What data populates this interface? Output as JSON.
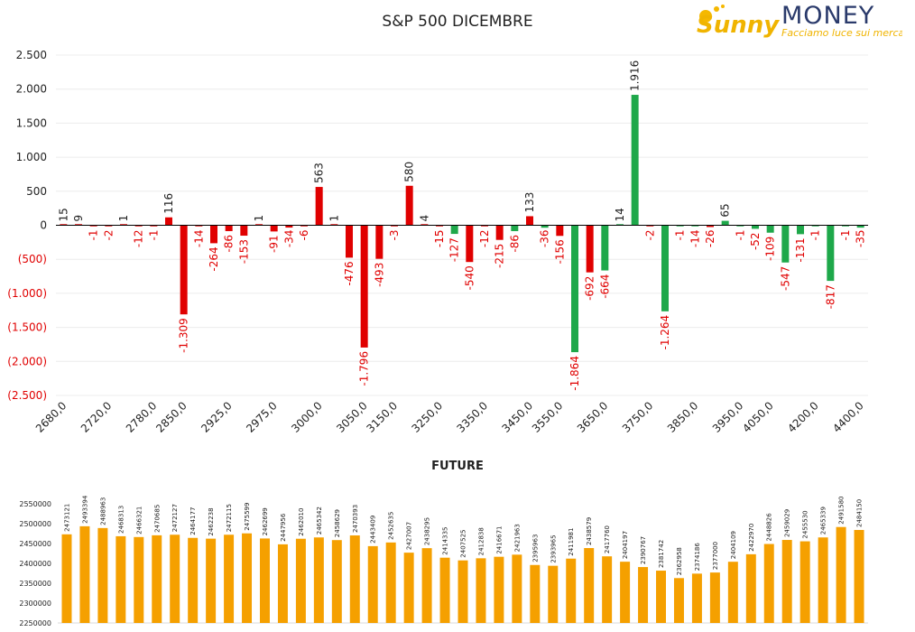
{
  "brand": {
    "sunny": "Sunny",
    "money": "MONEY",
    "tagline": "Facciamo luce sui mercati",
    "colors": {
      "sunny": "#f0b400",
      "money": "#2a3a6b",
      "tagline": "#f0b400"
    }
  },
  "chart_data": [
    {
      "type": "bar",
      "title": "S&P 500 DICEMBRE",
      "ylim": [
        -2500,
        2500
      ],
      "yticks": [
        2500,
        2000,
        1500,
        1000,
        500,
        0,
        -500,
        -1000,
        -1500,
        -2000,
        -2500
      ],
      "ytick_labels": [
        "2.500",
        "2.000",
        "1.500",
        "1.000",
        "500",
        "0",
        "(500)",
        "(1.000)",
        "(1.500)",
        "(2.000)",
        "(2.500)"
      ],
      "xtick_labels": [
        "2680,0",
        "2720,0",
        "2780,0",
        "2850,0",
        "2925,0",
        "2975,0",
        "3000,0",
        "3050,0",
        "3150,0",
        "3250,0",
        "3350,0",
        "3450,0",
        "3550,0",
        "3650,0",
        "3750,0",
        "3850,0",
        "3950,0",
        "4050,0",
        "4200,0",
        "4400,0"
      ],
      "colors": {
        "negative_text": "#e00000",
        "positive_text": "#222222"
      },
      "bars": [
        {
          "label": "15",
          "value": 15,
          "color": "#e00000"
        },
        {
          "label": "9",
          "value": 9,
          "color": "#e00000"
        },
        {
          "label": "-1",
          "value": -1,
          "color": "#e00000"
        },
        {
          "label": "-2",
          "value": -2,
          "color": "#e00000"
        },
        {
          "label": "1",
          "value": 1,
          "color": "#e00000"
        },
        {
          "label": "-12",
          "value": -12,
          "color": "#e00000"
        },
        {
          "label": "-1",
          "value": -1,
          "color": "#e00000"
        },
        {
          "label": "116",
          "value": 116,
          "color": "#e00000"
        },
        {
          "label": "-1.309",
          "value": -1309,
          "color": "#e00000"
        },
        {
          "label": "-14",
          "value": -14,
          "color": "#e00000"
        },
        {
          "label": "-264",
          "value": -264,
          "color": "#e00000"
        },
        {
          "label": "-86",
          "value": -86,
          "color": "#e00000"
        },
        {
          "label": "-153",
          "value": -153,
          "color": "#e00000"
        },
        {
          "label": "1",
          "value": 1,
          "color": "#e00000"
        },
        {
          "label": "-91",
          "value": -91,
          "color": "#e00000"
        },
        {
          "label": "-34",
          "value": -34,
          "color": "#e00000"
        },
        {
          "label": "-6",
          "value": -6,
          "color": "#e00000"
        },
        {
          "label": "563",
          "value": 563,
          "color": "#e00000"
        },
        {
          "label": "1",
          "value": 1,
          "color": "#e00000"
        },
        {
          "label": "-476",
          "value": -476,
          "color": "#e00000"
        },
        {
          "label": "-1.796",
          "value": -1796,
          "color": "#e00000"
        },
        {
          "label": "-493",
          "value": -493,
          "color": "#e00000"
        },
        {
          "label": "-3",
          "value": -3,
          "color": "#e00000"
        },
        {
          "label": "580",
          "value": 580,
          "color": "#e00000"
        },
        {
          "label": "4",
          "value": 4,
          "color": "#e00000"
        },
        {
          "label": "-15",
          "value": -15,
          "color": "#e00000"
        },
        {
          "label": "-127",
          "value": -127,
          "color": "#1ea84a"
        },
        {
          "label": "-540",
          "value": -540,
          "color": "#e00000"
        },
        {
          "label": "-12",
          "value": -12,
          "color": "#e00000"
        },
        {
          "label": "-215",
          "value": -215,
          "color": "#e00000"
        },
        {
          "label": "-86",
          "value": -86,
          "color": "#1ea84a"
        },
        {
          "label": "133",
          "value": 133,
          "color": "#e00000"
        },
        {
          "label": "-36",
          "value": -36,
          "color": "#1ea84a"
        },
        {
          "label": "-156",
          "value": -156,
          "color": "#e00000"
        },
        {
          "label": "-1.864",
          "value": -1864,
          "color": "#1ea84a"
        },
        {
          "label": "-692",
          "value": -692,
          "color": "#e00000"
        },
        {
          "label": "-664",
          "value": -664,
          "color": "#1ea84a"
        },
        {
          "label": "14",
          "value": 14,
          "color": "#1ea84a"
        },
        {
          "label": "1.916",
          "value": 1916,
          "color": "#1ea84a"
        },
        {
          "label": "-2",
          "value": -2,
          "color": "#e00000"
        },
        {
          "label": "-1.264",
          "value": -1264,
          "color": "#1ea84a"
        },
        {
          "label": "-1",
          "value": -1,
          "color": "#1ea84a"
        },
        {
          "label": "-14",
          "value": -14,
          "color": "#1ea84a"
        },
        {
          "label": "-26",
          "value": -26,
          "color": "#e00000"
        },
        {
          "label": "65",
          "value": 65,
          "color": "#1ea84a"
        },
        {
          "label": "-1",
          "value": -1,
          "color": "#1ea84a"
        },
        {
          "label": "-52",
          "value": -52,
          "color": "#1ea84a"
        },
        {
          "label": "-109",
          "value": -109,
          "color": "#1ea84a"
        },
        {
          "label": "-547",
          "value": -547,
          "color": "#1ea84a"
        },
        {
          "label": "-131",
          "value": -131,
          "color": "#1ea84a"
        },
        {
          "label": "-1",
          "value": -1,
          "color": "#1ea84a"
        },
        {
          "label": "-817",
          "value": -817,
          "color": "#1ea84a"
        },
        {
          "label": "-1",
          "value": -1,
          "color": "#1ea84a"
        },
        {
          "label": "-35",
          "value": -35,
          "color": "#1ea84a"
        }
      ]
    },
    {
      "type": "bar",
      "title": "FUTURE",
      "ylim": [
        2250000,
        2550000
      ],
      "yticks": [
        2550000,
        2500000,
        2450000,
        2400000,
        2350000,
        2300000,
        2250000
      ],
      "bar_color": "#f5a000",
      "values": [
        2473121,
        2493394,
        2488963,
        2468313,
        2466321,
        2470685,
        2472127,
        2464177,
        2462238,
        2472115,
        2475599,
        2462699,
        2447956,
        2462010,
        2465342,
        2458629,
        2470393,
        2443409,
        2452635,
        2427007,
        2438295,
        2414335,
        2407525,
        2412838,
        2416671,
        2421963,
        2395963,
        2393965,
        2411981,
        2438579,
        2417760,
        2404197,
        2390767,
        2381742,
        2362958,
        2374186,
        2377000,
        2404109,
        2422970,
        2448826,
        2459029,
        2455530,
        2465339,
        2491580,
        2484150
      ]
    }
  ]
}
